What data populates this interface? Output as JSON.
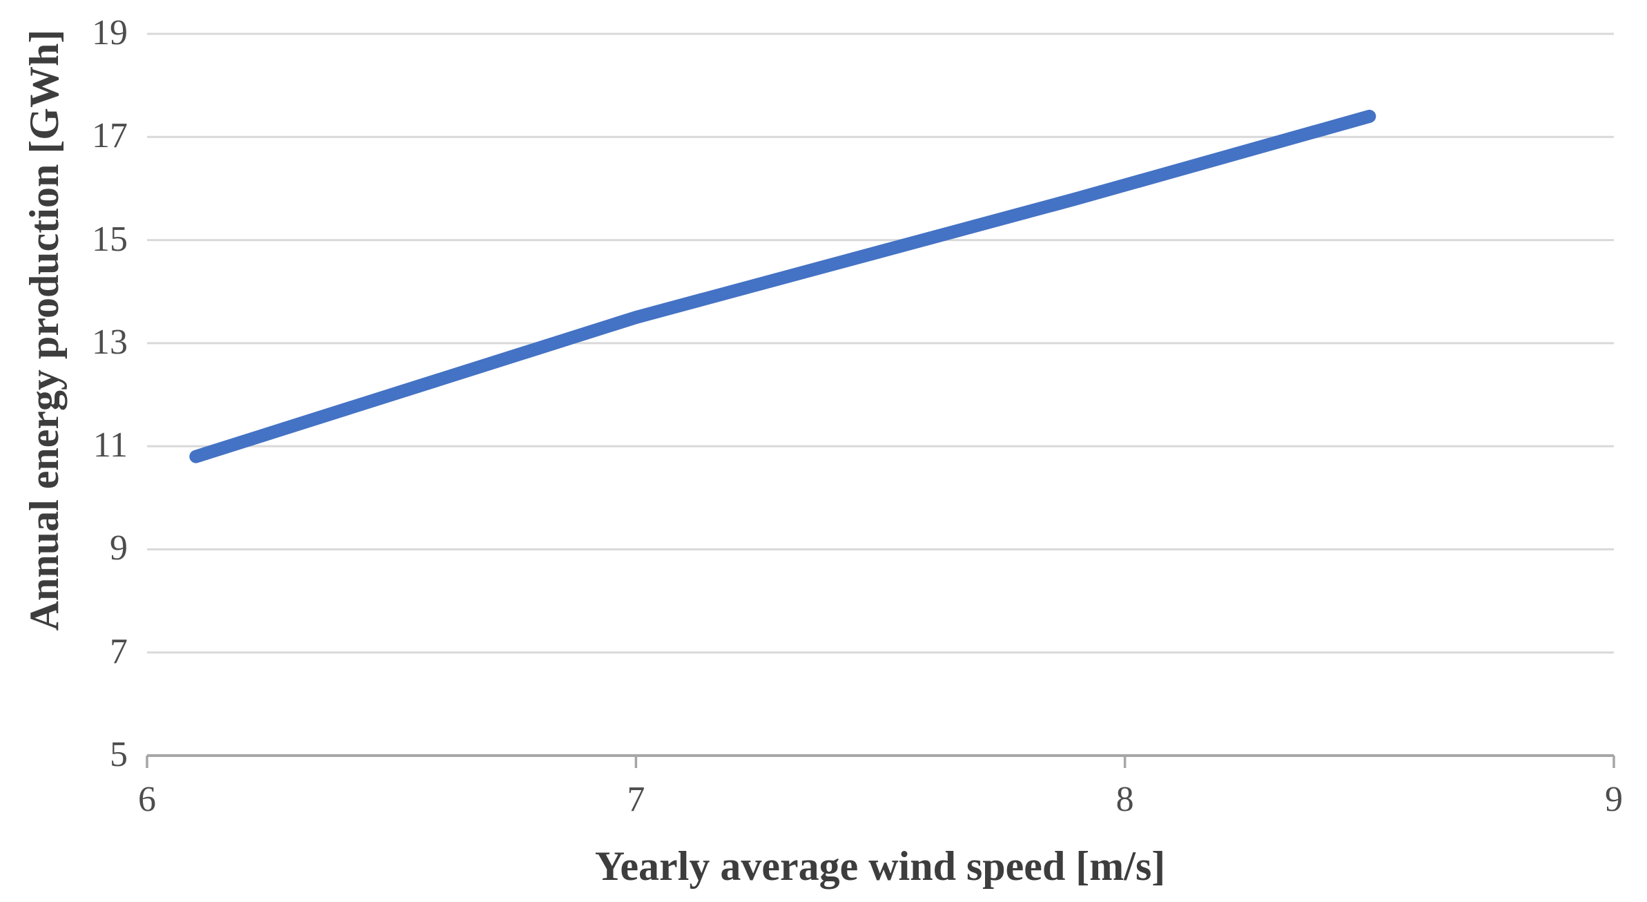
{
  "chart_data": {
    "type": "line",
    "title": "",
    "xlabel": "Yearly average wind speed [m/s]",
    "ylabel": "Annual energy production [GWh]",
    "x": [
      6.1,
      7.0,
      7.9,
      8.5
    ],
    "series": [
      {
        "name": "Annual energy production",
        "values": [
          10.8,
          13.5,
          15.8,
          17.4
        ]
      }
    ],
    "xlim": [
      6,
      9
    ],
    "ylim": [
      5,
      19
    ],
    "x_ticks": [
      6,
      7,
      8,
      9
    ],
    "y_ticks": [
      5,
      7,
      9,
      11,
      13,
      15,
      17,
      19
    ],
    "grid": "horizontal-only",
    "legend": false,
    "colors": {
      "line": "#4472C4",
      "gridline": "#D9D9D9",
      "axis": "#A6A6A6",
      "tick_label": "#4D4D4D",
      "axis_title": "#3D3D3D"
    }
  }
}
